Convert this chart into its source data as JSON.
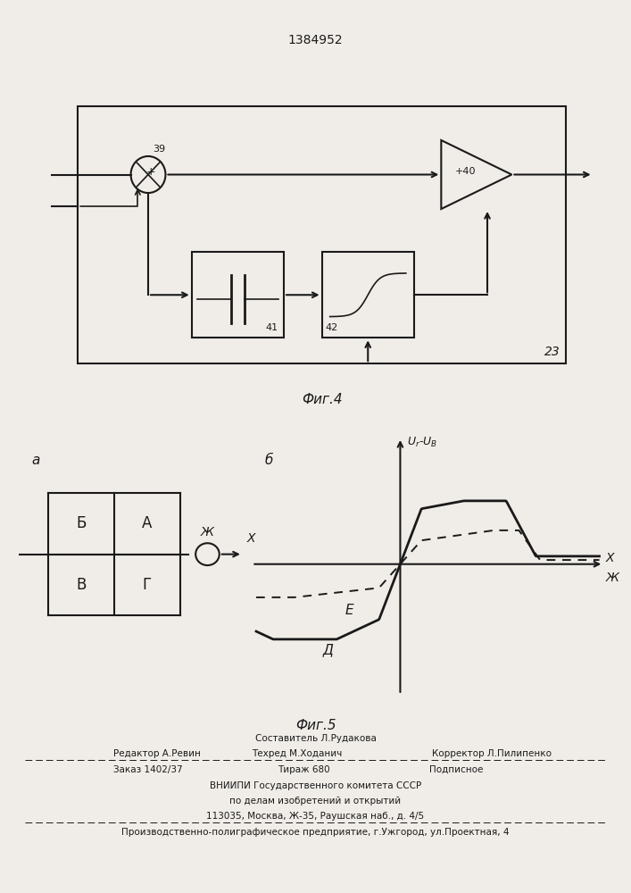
{
  "title": "1384952",
  "fig4_label": "Фиг.4",
  "fig5_label": "Фиг.5",
  "block_23_label": "23",
  "block_39_label": "39",
  "block_40_label": "+40",
  "block_41_label": "41",
  "block_42_label": "42",
  "fig5a_label": "а",
  "fig5b_label": "б",
  "label_B": "Б",
  "label_A": "А",
  "label_V": "В",
  "label_G": "Г",
  "label_Zh": "Ж",
  "label_X": "X",
  "label_D": "Д",
  "label_E": "Е",
  "label_Ur_UB": "$U_r$-$U_B$",
  "footer_editor": "Редактор А.Ревин",
  "footer_composer": "Составитель Л.Рудакова",
  "footer_techred": "Техред М.Ходанич",
  "footer_corrector": "Корректор Л.Пилипенко",
  "footer_order": "Заказ 1402/37",
  "footer_tirazh": "Тираж 680",
  "footer_podpisnoe": "Подписное",
  "footer_vniipи": "ВНИИПИ Государственного комитета СССР",
  "footer_dela": "по делам изобретений и открытий",
  "footer_address": "113035, Москва, Ж-35, Раушская наб., д. 4/5",
  "footer_factory": "Производственно-полиграфическое предприятие, г.Ужгород, ул.Проектная, 4",
  "bg_color": "#f0ede8",
  "line_color": "#1a1a1a"
}
